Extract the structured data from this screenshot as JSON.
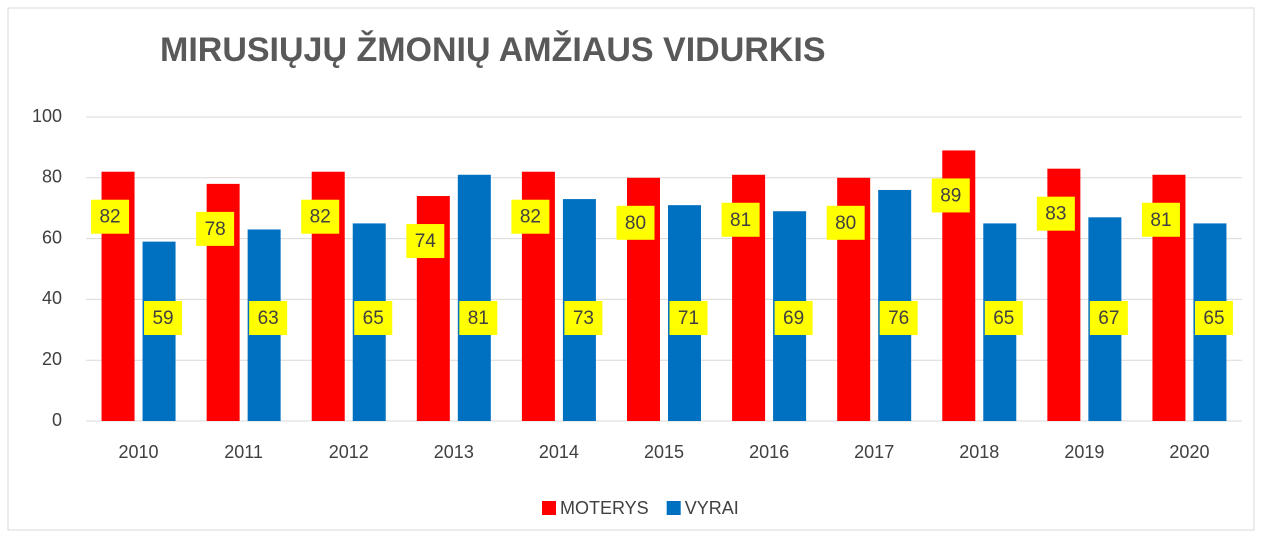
{
  "chart_data": {
    "type": "bar",
    "title": "MIRUSIŲJŲ ŽMONIŲ AMŽIAUS VIDURKIS",
    "categories": [
      "2010",
      "2011",
      "2012",
      "2013",
      "2014",
      "2015",
      "2016",
      "2017",
      "2018",
      "2019",
      "2020"
    ],
    "series": [
      {
        "name": "MOTERYS",
        "color": "#ff0000",
        "values": [
          82,
          78,
          82,
          74,
          82,
          80,
          81,
          80,
          89,
          83,
          81
        ]
      },
      {
        "name": "VYRAI",
        "color": "#0070c0",
        "values": [
          59,
          63,
          65,
          81,
          73,
          71,
          69,
          76,
          65,
          67,
          65
        ]
      }
    ],
    "ylim": [
      0,
      100
    ],
    "yticks": [
      0,
      20,
      40,
      60,
      80,
      100
    ],
    "grid": true,
    "legend": "bottom",
    "label_color": "#ffff00"
  }
}
